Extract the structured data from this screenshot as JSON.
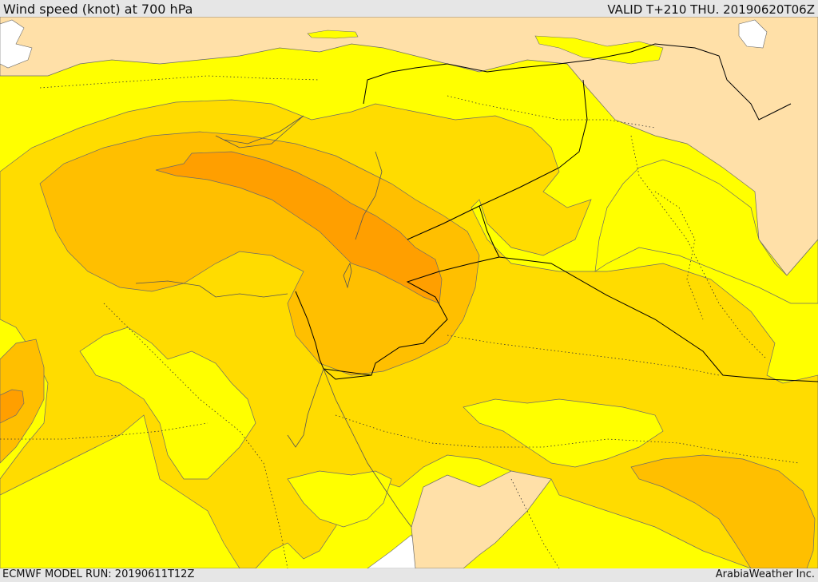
{
  "header": {
    "title": "Wind speed (knot) at 700 hPa",
    "valid_time": "VALID T+210 THU. 20190620T06Z"
  },
  "footer": {
    "model_run": "ECMWF MODEL RUN: 20190611T12Z",
    "credit": "ArabiaWeather Inc."
  },
  "colors": {
    "sea_and_uncolored": "#ffffff",
    "land_low_wind": "#ffe0a8",
    "band_1": "#ffff00",
    "band_2": "#ffdc00",
    "band_3": "#ffbf00",
    "band_4": "#ff9f00",
    "contour_line": "#6b6b6b",
    "border_line": "#000000"
  }
}
